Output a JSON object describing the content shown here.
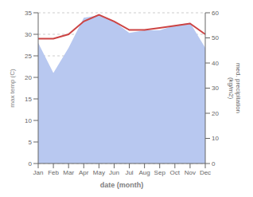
{
  "chart_data": {
    "type": "line",
    "xlabel": "date (month)",
    "ylabel": "max temp (C)",
    "y2label": "med. precipitation\n(kg/m2)",
    "categories": [
      "Jan",
      "Feb",
      "Mar",
      "Apr",
      "May",
      "Jun",
      "Jul",
      "Aug",
      "Sep",
      "Oct",
      "Nov",
      "Dec"
    ],
    "ylim": [
      0,
      35
    ],
    "yticks": [
      0,
      5,
      10,
      15,
      20,
      25,
      30,
      35
    ],
    "y2lim": [
      0,
      60
    ],
    "y2ticks": [
      0,
      10,
      20,
      30,
      40,
      50,
      60
    ],
    "grid": true,
    "series": [
      {
        "type": "area",
        "axis": "y2",
        "color": "#b8c8f0",
        "values": [
          48.0,
          36.0,
          46.0,
          58.0,
          59.0,
          56.5,
          52.0,
          53.0,
          53.0,
          55.0,
          56.0,
          46.0
        ]
      },
      {
        "type": "line",
        "color": "#cc4444",
        "values": [
          29.0,
          29.0,
          30.0,
          33.0,
          34.5,
          33.0,
          31.0,
          31.0,
          31.5,
          32.0,
          32.5,
          30.0
        ]
      }
    ]
  }
}
